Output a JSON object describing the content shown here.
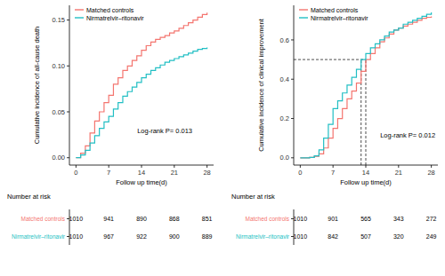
{
  "chart_data": [
    {
      "type": "step",
      "y_label": "Cumulative incidence of all-cause death",
      "x_label": "Follow up time(d)",
      "annotation": "Log-rank P= 0.013",
      "legend": "top-left",
      "grid": false,
      "xlim": [
        -1.4,
        29.4
      ],
      "xticks": [
        0,
        7,
        14,
        21,
        28
      ],
      "ylim": [
        -0.008,
        0.166
      ],
      "yticks": [
        {
          "value": 0,
          "label": "0.00"
        },
        {
          "value": 0.05,
          "label": "0.05"
        },
        {
          "value": 0.1,
          "label": "0.10"
        },
        {
          "value": 0.15,
          "label": "0.15"
        }
      ],
      "x": [
        0,
        1,
        2,
        3,
        4,
        5,
        6,
        7,
        8,
        9,
        10,
        11,
        12,
        13,
        14,
        15,
        16,
        17,
        18,
        19,
        20,
        21,
        22,
        23,
        24,
        25,
        26,
        27,
        28
      ],
      "risk_table_title": "Number at risk",
      "series": [
        {
          "name": "Matched controls",
          "color": "#F4756F",
          "values": [
            0,
            0.005,
            0.013,
            0.027,
            0.04,
            0.05,
            0.06,
            0.068,
            0.08,
            0.087,
            0.095,
            0.1,
            0.106,
            0.111,
            0.117,
            0.122,
            0.126,
            0.129,
            0.131,
            0.133,
            0.136,
            0.138,
            0.141,
            0.144,
            0.147,
            0.15,
            0.153,
            0.156,
            0.158
          ],
          "at_risk": [
            1010,
            941,
            890,
            868,
            851
          ]
        },
        {
          "name": "Nirmatrelvir–ritonavir",
          "color": "#22BFC4",
          "values": [
            0,
            0.003,
            0.008,
            0.016,
            0.024,
            0.032,
            0.039,
            0.045,
            0.053,
            0.06,
            0.067,
            0.072,
            0.077,
            0.082,
            0.087,
            0.091,
            0.095,
            0.098,
            0.101,
            0.104,
            0.106,
            0.108,
            0.11,
            0.112,
            0.114,
            0.116,
            0.118,
            0.119,
            0.12
          ],
          "at_risk": [
            1010,
            967,
            922,
            900,
            889
          ]
        }
      ]
    },
    {
      "type": "step",
      "y_label": "Cumulative incidence of clinical improvement",
      "x_label": "Follow up time(d)",
      "annotation": "Log-rank P= 0.012",
      "legend": "top-left",
      "grid": false,
      "xlim": [
        -1.4,
        29.4
      ],
      "xticks": [
        0,
        7,
        14,
        21,
        28
      ],
      "ylim": [
        -0.037,
        0.776
      ],
      "yticks": [
        {
          "value": 0,
          "label": "0.0"
        },
        {
          "value": 0.2,
          "label": "0.2"
        },
        {
          "value": 0.4,
          "label": "0.4"
        },
        {
          "value": 0.6,
          "label": "0.6"
        }
      ],
      "x": [
        0,
        1,
        2,
        3,
        4,
        5,
        6,
        7,
        8,
        9,
        10,
        11,
        12,
        13,
        14,
        15,
        16,
        17,
        18,
        19,
        20,
        21,
        22,
        23,
        24,
        25,
        26,
        27,
        28
      ],
      "reference_lines": {
        "y": 0.5,
        "x": [
          13,
          14
        ]
      },
      "risk_table_title": "Number at risk",
      "series": [
        {
          "name": "Matched controls",
          "color": "#F4756F",
          "values": [
            0,
            0,
            0.002,
            0.008,
            0.02,
            0.05,
            0.1,
            0.15,
            0.2,
            0.25,
            0.3,
            0.34,
            0.38,
            0.44,
            0.5,
            0.53,
            0.56,
            0.59,
            0.61,
            0.63,
            0.65,
            0.66,
            0.67,
            0.68,
            0.69,
            0.7,
            0.71,
            0.715,
            0.72
          ],
          "at_risk": [
            1010,
            901,
            565,
            343,
            272
          ]
        },
        {
          "name": "Nirmatrelvir–ritonavir",
          "color": "#22BFC4",
          "values": [
            0,
            0,
            0.002,
            0.01,
            0.04,
            0.1,
            0.17,
            0.25,
            0.29,
            0.33,
            0.37,
            0.41,
            0.45,
            0.5,
            0.53,
            0.56,
            0.58,
            0.6,
            0.62,
            0.64,
            0.65,
            0.66,
            0.68,
            0.69,
            0.7,
            0.71,
            0.72,
            0.73,
            0.74
          ],
          "at_risk": [
            1010,
            842,
            507,
            320,
            249
          ]
        }
      ]
    }
  ]
}
